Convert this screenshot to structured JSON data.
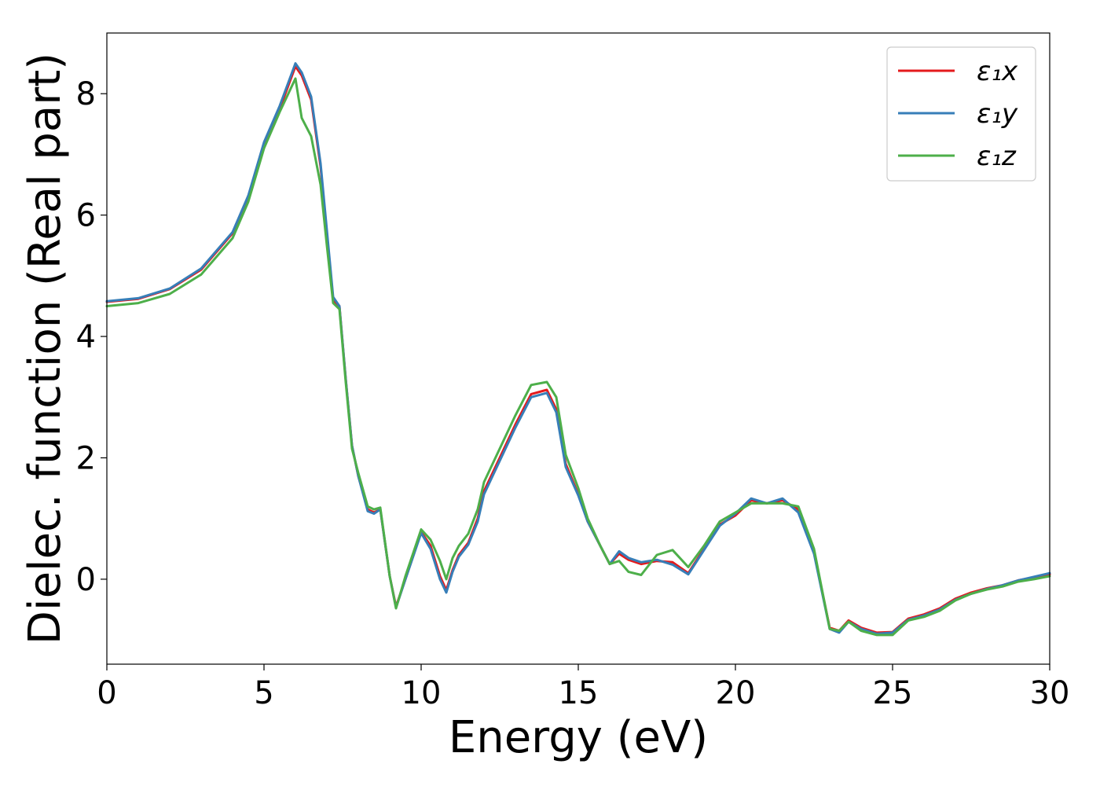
{
  "chart_data": {
    "type": "line",
    "xlabel": "Energy (eV)",
    "ylabel": "Dielec. function (Real part)",
    "xlim": [
      0,
      30
    ],
    "ylim": [
      -1.4,
      9.0
    ],
    "xticks": [
      0,
      5,
      10,
      15,
      20,
      25,
      30
    ],
    "yticks": [
      0,
      2,
      4,
      6,
      8
    ],
    "grid": false,
    "legend_position": "top-right",
    "series": [
      {
        "name": "ε₁x",
        "color": "#e41a1c",
        "x": [
          0,
          1,
          2,
          3,
          4,
          4.5,
          5,
          5.5,
          6,
          6.2,
          6.5,
          6.8,
          7,
          7.2,
          7.4,
          7.6,
          7.8,
          8,
          8.3,
          8.5,
          8.7,
          9,
          9.2,
          9.5,
          10,
          10.3,
          10.6,
          10.8,
          11,
          11.2,
          11.5,
          11.8,
          12,
          12.5,
          13,
          13.5,
          14,
          14.3,
          14.6,
          15,
          15.3,
          15.7,
          16,
          16.3,
          16.6,
          17,
          17.5,
          18,
          18.5,
          19,
          19.5,
          20,
          20.5,
          21,
          21.5,
          22,
          22.5,
          23,
          23.3,
          23.6,
          24,
          24.5,
          25,
          25.5,
          26,
          26.5,
          27,
          27.5,
          28,
          28.5,
          29,
          29.5,
          30
        ],
        "values": [
          4.57,
          4.62,
          4.78,
          5.1,
          5.7,
          6.3,
          7.15,
          7.75,
          8.45,
          8.3,
          7.9,
          6.8,
          5.7,
          4.6,
          4.5,
          3.3,
          2.2,
          1.7,
          1.15,
          1.1,
          1.15,
          0.05,
          -0.45,
          0.0,
          0.78,
          0.55,
          0.05,
          -0.18,
          0.15,
          0.4,
          0.6,
          1.0,
          1.45,
          2.0,
          2.55,
          3.05,
          3.12,
          2.8,
          1.9,
          1.4,
          0.95,
          0.55,
          0.25,
          0.42,
          0.32,
          0.25,
          0.3,
          0.28,
          0.1,
          0.5,
          0.9,
          1.05,
          1.3,
          1.25,
          1.3,
          1.15,
          0.45,
          -0.8,
          -0.85,
          -0.68,
          -0.8,
          -0.88,
          -0.87,
          -0.65,
          -0.58,
          -0.48,
          -0.32,
          -0.22,
          -0.15,
          -0.1,
          -0.02,
          0.03,
          0.08
        ]
      },
      {
        "name": "ε₁y",
        "color": "#377eb8",
        "x": [
          0,
          1,
          2,
          3,
          4,
          4.5,
          5,
          5.5,
          6,
          6.2,
          6.5,
          6.8,
          7,
          7.2,
          7.4,
          7.6,
          7.8,
          8,
          8.3,
          8.5,
          8.7,
          9,
          9.2,
          9.5,
          10,
          10.3,
          10.6,
          10.8,
          11,
          11.2,
          11.5,
          11.8,
          12,
          12.5,
          13,
          13.5,
          14,
          14.3,
          14.6,
          15,
          15.3,
          15.7,
          16,
          16.3,
          16.6,
          17,
          17.5,
          18,
          18.5,
          19,
          19.5,
          20,
          20.5,
          21,
          21.5,
          22,
          22.5,
          23,
          23.3,
          23.6,
          24,
          24.5,
          25,
          25.5,
          26,
          26.5,
          27,
          27.5,
          28,
          28.5,
          29,
          29.5,
          30
        ],
        "values": [
          4.58,
          4.63,
          4.79,
          5.12,
          5.72,
          6.32,
          7.2,
          7.8,
          8.5,
          8.35,
          7.95,
          6.85,
          5.75,
          4.65,
          4.5,
          3.3,
          2.2,
          1.7,
          1.12,
          1.08,
          1.15,
          0.05,
          -0.47,
          0.0,
          0.76,
          0.5,
          0.0,
          -0.22,
          0.12,
          0.37,
          0.57,
          0.95,
          1.4,
          1.95,
          2.5,
          3.0,
          3.07,
          2.75,
          1.85,
          1.38,
          0.95,
          0.55,
          0.25,
          0.46,
          0.35,
          0.28,
          0.32,
          0.24,
          0.08,
          0.48,
          0.88,
          1.08,
          1.33,
          1.25,
          1.33,
          1.1,
          0.42,
          -0.82,
          -0.88,
          -0.7,
          -0.82,
          -0.9,
          -0.88,
          -0.67,
          -0.6,
          -0.5,
          -0.34,
          -0.24,
          -0.16,
          -0.1,
          -0.02,
          0.04,
          0.1
        ]
      },
      {
        "name": "ε₁z",
        "color": "#4daf4a",
        "x": [
          0,
          1,
          2,
          3,
          4,
          4.5,
          5,
          5.5,
          6,
          6.2,
          6.5,
          6.8,
          7,
          7.2,
          7.4,
          7.6,
          7.8,
          8,
          8.3,
          8.5,
          8.7,
          9,
          9.2,
          9.5,
          10,
          10.3,
          10.6,
          10.8,
          11,
          11.2,
          11.5,
          11.8,
          12,
          12.5,
          13,
          13.5,
          14,
          14.3,
          14.6,
          15,
          15.3,
          15.7,
          16,
          16.3,
          16.6,
          17,
          17.5,
          18,
          18.5,
          19,
          19.5,
          20,
          20.5,
          21,
          21.5,
          22,
          22.5,
          23,
          23.3,
          23.6,
          24,
          24.5,
          25,
          25.5,
          26,
          26.5,
          27,
          27.5,
          28,
          28.5,
          29,
          29.5,
          30
        ],
        "values": [
          4.5,
          4.55,
          4.7,
          5.02,
          5.62,
          6.22,
          7.1,
          7.7,
          8.25,
          7.6,
          7.3,
          6.5,
          5.5,
          4.55,
          4.45,
          3.25,
          2.15,
          1.75,
          1.2,
          1.15,
          1.18,
          0.05,
          -0.48,
          0.05,
          0.82,
          0.65,
          0.3,
          0.0,
          0.35,
          0.55,
          0.75,
          1.15,
          1.6,
          2.15,
          2.7,
          3.2,
          3.25,
          3.0,
          2.05,
          1.5,
          1.0,
          0.55,
          0.25,
          0.3,
          0.12,
          0.07,
          0.4,
          0.48,
          0.2,
          0.55,
          0.95,
          1.1,
          1.25,
          1.25,
          1.25,
          1.2,
          0.5,
          -0.82,
          -0.85,
          -0.7,
          -0.85,
          -0.92,
          -0.92,
          -0.68,
          -0.62,
          -0.52,
          -0.35,
          -0.24,
          -0.17,
          -0.12,
          -0.04,
          0.0,
          0.05
        ]
      }
    ]
  }
}
